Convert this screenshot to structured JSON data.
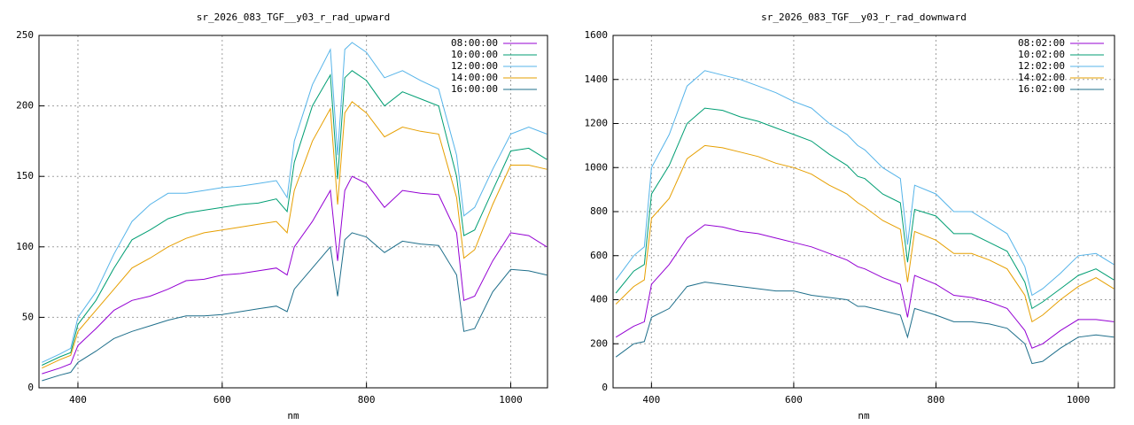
{
  "chart_data": [
    {
      "type": "line",
      "title": "sr_2026_083_TGF__y03_r_rad_upward",
      "xlabel": "nm",
      "x": [
        350,
        375,
        390,
        400,
        425,
        450,
        475,
        500,
        525,
        550,
        575,
        600,
        625,
        650,
        675,
        690,
        700,
        725,
        750,
        760,
        770,
        780,
        800,
        825,
        850,
        875,
        900,
        925,
        935,
        950,
        975,
        1000,
        1025,
        1050
      ],
      "series": [
        {
          "name": "08:00:00",
          "color": "#9400d3",
          "values": [
            10,
            14,
            17,
            30,
            42,
            55,
            62,
            65,
            70,
            76,
            77,
            80,
            81,
            83,
            85,
            80,
            100,
            118,
            140,
            90,
            140,
            150,
            145,
            128,
            140,
            138,
            137,
            110,
            62,
            65,
            90,
            110,
            108,
            100
          ]
        },
        {
          "name": "10:00:00",
          "color": "#009e73",
          "values": [
            16,
            22,
            25,
            45,
            62,
            85,
            105,
            112,
            120,
            124,
            126,
            128,
            130,
            131,
            134,
            125,
            160,
            200,
            222,
            148,
            220,
            225,
            218,
            200,
            210,
            205,
            200,
            150,
            108,
            112,
            140,
            168,
            170,
            162
          ]
        },
        {
          "name": "12:00:00",
          "color": "#56b4e9",
          "values": [
            18,
            24,
            28,
            50,
            68,
            95,
            118,
            130,
            138,
            138,
            140,
            142,
            143,
            145,
            147,
            135,
            175,
            215,
            240,
            165,
            240,
            245,
            238,
            220,
            225,
            218,
            212,
            165,
            122,
            128,
            155,
            180,
            185,
            180
          ]
        },
        {
          "name": "14:00:00",
          "color": "#e69f00",
          "values": [
            14,
            20,
            23,
            40,
            55,
            70,
            85,
            92,
            100,
            106,
            110,
            112,
            114,
            116,
            118,
            110,
            140,
            175,
            198,
            130,
            195,
            203,
            195,
            178,
            185,
            182,
            180,
            135,
            92,
            98,
            130,
            158,
            158,
            155
          ]
        },
        {
          "name": "16:00:00",
          "color": "#1f6f8b",
          "values": [
            5,
            9,
            11,
            18,
            26,
            35,
            40,
            44,
            48,
            51,
            51,
            52,
            54,
            56,
            58,
            54,
            70,
            85,
            100,
            65,
            105,
            110,
            107,
            96,
            104,
            102,
            101,
            80,
            40,
            42,
            68,
            84,
            83,
            80
          ]
        }
      ],
      "xlim": [
        346,
        1051
      ],
      "ylim": [
        0,
        250
      ],
      "xticks": [
        400,
        600,
        800,
        1000
      ],
      "yticks": [
        0,
        50,
        100,
        150,
        200,
        250
      ],
      "grid": true,
      "legend": "top-right"
    },
    {
      "type": "line",
      "title": "sr_2026_083_TGF__y03_r_rad_downward",
      "xlabel": "nm",
      "x": [
        350,
        375,
        390,
        400,
        425,
        450,
        475,
        500,
        525,
        550,
        575,
        600,
        625,
        650,
        675,
        690,
        700,
        725,
        750,
        760,
        770,
        800,
        825,
        850,
        875,
        900,
        925,
        935,
        950,
        975,
        1000,
        1025,
        1050
      ],
      "series": [
        {
          "name": "08:02:00",
          "color": "#9400d3",
          "values": [
            230,
            280,
            300,
            470,
            560,
            680,
            740,
            730,
            710,
            700,
            680,
            660,
            640,
            610,
            580,
            550,
            540,
            500,
            470,
            320,
            510,
            470,
            420,
            410,
            390,
            360,
            260,
            180,
            200,
            260,
            310,
            310,
            300
          ]
        },
        {
          "name": "10:02:00",
          "color": "#009e73",
          "values": [
            430,
            530,
            560,
            880,
            1010,
            1200,
            1270,
            1260,
            1230,
            1210,
            1180,
            1150,
            1120,
            1060,
            1010,
            960,
            950,
            880,
            840,
            570,
            810,
            780,
            700,
            700,
            660,
            620,
            480,
            360,
            390,
            450,
            510,
            540,
            490
          ]
        },
        {
          "name": "12:02:00",
          "color": "#56b4e9",
          "values": [
            490,
            600,
            640,
            1000,
            1150,
            1370,
            1440,
            1420,
            1400,
            1370,
            1340,
            1300,
            1270,
            1200,
            1150,
            1100,
            1080,
            1000,
            950,
            650,
            920,
            880,
            800,
            800,
            750,
            700,
            550,
            420,
            450,
            520,
            600,
            610,
            560
          ]
        },
        {
          "name": "14:02:00",
          "color": "#e69f00",
          "values": [
            380,
            460,
            490,
            770,
            860,
            1040,
            1100,
            1090,
            1070,
            1050,
            1020,
            1000,
            970,
            920,
            880,
            840,
            820,
            760,
            720,
            480,
            710,
            670,
            610,
            610,
            580,
            540,
            420,
            300,
            330,
            400,
            460,
            500,
            450
          ]
        },
        {
          "name": "16:02:00",
          "color": "#1f6f8b",
          "values": [
            140,
            200,
            210,
            320,
            360,
            460,
            480,
            470,
            460,
            450,
            440,
            440,
            420,
            410,
            400,
            370,
            370,
            350,
            330,
            230,
            360,
            330,
            300,
            300,
            290,
            270,
            200,
            110,
            120,
            180,
            230,
            240,
            230
          ]
        }
      ],
      "xlim": [
        346,
        1051
      ],
      "ylim": [
        0,
        1600
      ],
      "xticks": [
        400,
        600,
        800,
        1000
      ],
      "yticks": [
        0,
        200,
        400,
        600,
        800,
        1000,
        1200,
        1400,
        1600
      ],
      "grid": true,
      "legend": "top-right"
    }
  ]
}
